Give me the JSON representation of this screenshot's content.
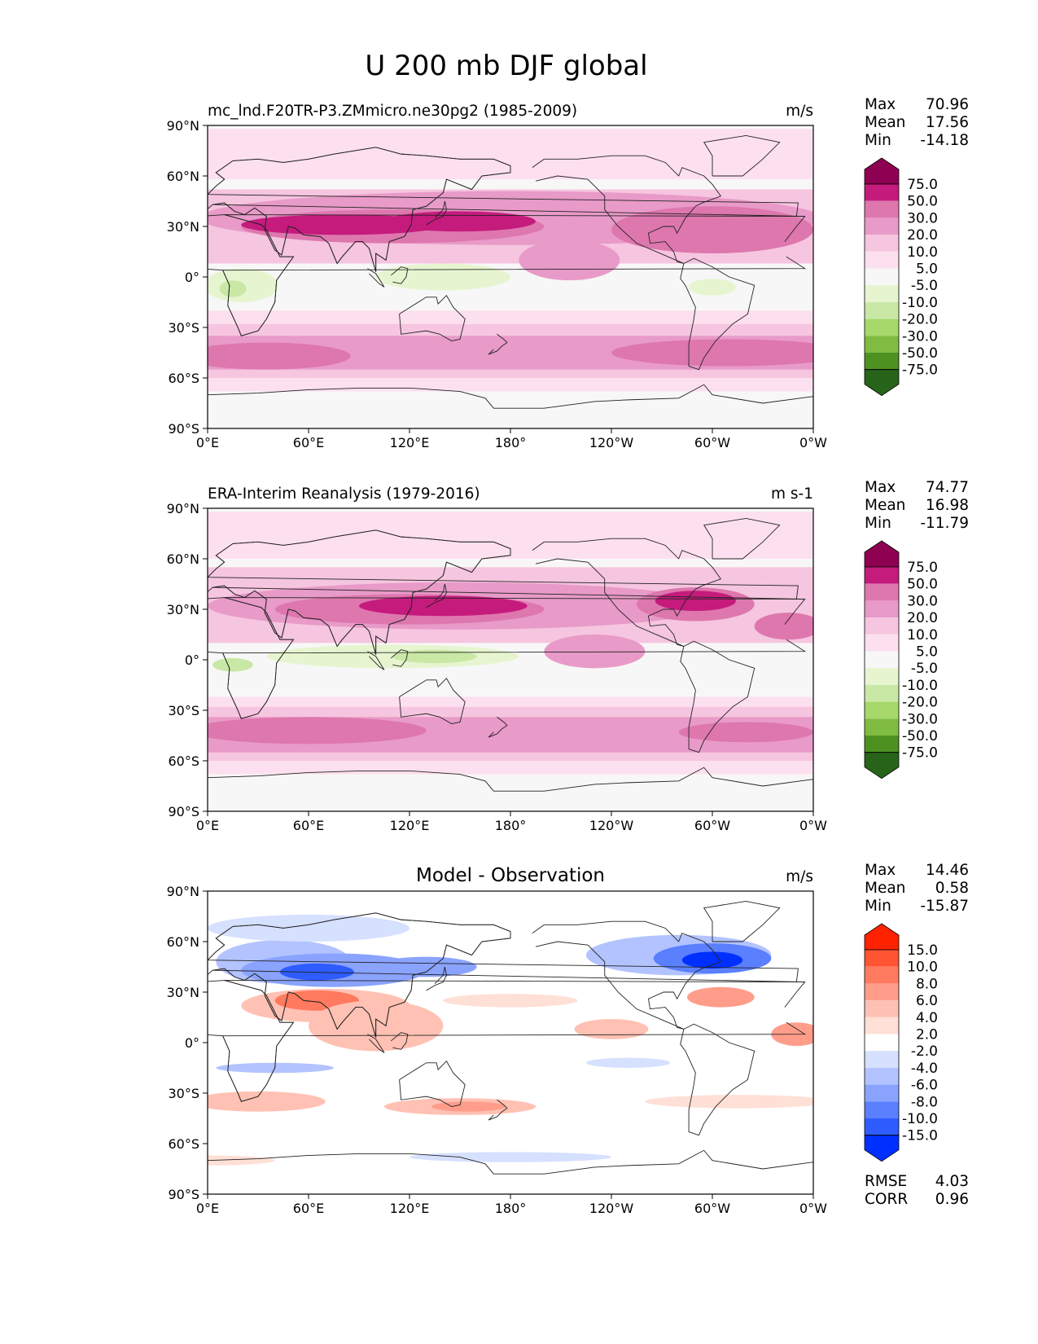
{
  "title": "U 200 mb DJF global",
  "x_ticks": [
    "0°E",
    "60°E",
    "120°E",
    "180°",
    "120°W",
    "60°W",
    "0°W"
  ],
  "y_ticks": [
    "90°N",
    "60°N",
    "30°N",
    "0°",
    "30°S",
    "60°S",
    "90°S"
  ],
  "colors": {
    "land_outline": "#222222",
    "pink_scale": [
      "#276419",
      "#4d9221",
      "#7fbc41",
      "#a6d96a",
      "#c9e8a6",
      "#e6f5d0",
      "#f7f7f7",
      "#fde0ef",
      "#f6c5df",
      "#e89ac8",
      "#de77ae",
      "#c51b7d",
      "#8e0152"
    ],
    "diff_scale": [
      "#0030ff",
      "#2f5cff",
      "#5a7fff",
      "#8aa3ff",
      "#b3c3ff",
      "#d6e0ff",
      "#ffffff",
      "#ffe0d6",
      "#ffc1b3",
      "#ff9d8a",
      "#ff7a5e",
      "#ff5533",
      "#ff2200"
    ]
  },
  "chart_data": [
    {
      "type": "heatmap",
      "panel": "test",
      "subtitle": "mc_lnd.F20TR-P3.ZMmicro.ne30pg2 (1985-2009)",
      "units": "m/s",
      "stats": {
        "max_label": "Max",
        "max": "70.96",
        "mean_label": "Mean",
        "mean": "17.56",
        "min_label": "Min",
        "min": "-14.18"
      },
      "colorbar_levels": [
        "75.0",
        "50.0",
        "30.0",
        "20.0",
        "10.0",
        "5.0",
        "-5.0",
        "-10.0",
        "-20.0",
        "-30.0",
        "-50.0",
        "-75.0"
      ],
      "xlim": [
        0,
        360
      ],
      "ylim": [
        -90,
        90
      ],
      "features": [
        {
          "name": "nh-jet-core",
          "lon": [
            20,
            210
          ],
          "lat": [
            25,
            38
          ],
          "level": "50 to 75"
        },
        {
          "name": "nh-jet-band",
          "lon": [
            0,
            360
          ],
          "lat": [
            12,
            45
          ],
          "level": "20 to 50"
        },
        {
          "name": "atlantic-jet",
          "lon": [
            270,
            360
          ],
          "lat": [
            15,
            50
          ],
          "level": "30 to 50"
        },
        {
          "name": "sh-jet",
          "lon": [
            0,
            360
          ],
          "lat": [
            -60,
            -38
          ],
          "level": "30 to 50"
        },
        {
          "name": "africa-easterlies",
          "lon": [
            5,
            40
          ],
          "lat": [
            -18,
            -2
          ],
          "level": "-10 to -20"
        },
        {
          "name": "maritime-continent-easterlies",
          "lon": [
            110,
            175
          ],
          "lat": [
            -10,
            5
          ],
          "level": "-5 to -10"
        }
      ]
    },
    {
      "type": "heatmap",
      "panel": "reference",
      "subtitle": "ERA-Interim Reanalysis (1979-2016)",
      "units": "m s-1",
      "stats": {
        "max_label": "Max",
        "max": "74.77",
        "mean_label": "Mean",
        "mean": "16.98",
        "min_label": "Min",
        "min": "-11.79"
      },
      "colorbar_levels": [
        "75.0",
        "50.0",
        "30.0",
        "20.0",
        "10.0",
        "5.0",
        "-5.0",
        "-10.0",
        "-20.0",
        "-30.0",
        "-50.0",
        "-75.0"
      ],
      "xlim": [
        0,
        360
      ],
      "ylim": [
        -90,
        90
      ],
      "features": [
        {
          "name": "nh-jet-core",
          "lon": [
            70,
            190
          ],
          "lat": [
            25,
            38
          ],
          "level": "50 to 75"
        },
        {
          "name": "nh-jet-band",
          "lon": [
            0,
            360
          ],
          "lat": [
            12,
            45
          ],
          "level": "20 to 50"
        },
        {
          "name": "atlantic-jet",
          "lon": [
            255,
            320
          ],
          "lat": [
            25,
            45
          ],
          "level": "50 to 75"
        },
        {
          "name": "sh-jet",
          "lon": [
            0,
            360
          ],
          "lat": [
            -58,
            -38
          ],
          "level": "30 to 50"
        },
        {
          "name": "africa-easterlies",
          "lon": [
            5,
            40
          ],
          "lat": [
            -10,
            0
          ],
          "level": "-10 to -20"
        },
        {
          "name": "indian-ocean-easterlies",
          "lon": [
            60,
            170
          ],
          "lat": [
            -8,
            8
          ],
          "level": "-5 to -10"
        }
      ]
    },
    {
      "type": "heatmap",
      "panel": "difference",
      "subtitle": "Model - Observation",
      "units": "m/s",
      "stats": {
        "max_label": "Max",
        "max": "14.46",
        "mean_label": "Mean",
        "mean": "0.58",
        "min_label": "Min",
        "min": "-15.87"
      },
      "colorbar_levels": [
        "15.0",
        "10.0",
        "8.0",
        "6.0",
        "4.0",
        "2.0",
        "-2.0",
        "-4.0",
        "-6.0",
        "-8.0",
        "-10.0",
        "-15.0"
      ],
      "metrics": {
        "rmse_label": "RMSE",
        "rmse": "4.03",
        "corr_label": "CORR",
        "corr": "0.96"
      },
      "xlim": [
        0,
        360
      ],
      "ylim": [
        -90,
        90
      ],
      "features": [
        {
          "name": "asia-negative",
          "lon": [
            30,
            150
          ],
          "lat": [
            30,
            55
          ],
          "level": "-10 to -15"
        },
        {
          "name": "na-negative",
          "lon": [
            260,
            340
          ],
          "lat": [
            35,
            60
          ],
          "level": "-10 to -15"
        },
        {
          "name": "arabia-positive",
          "lon": [
            20,
            140
          ],
          "lat": [
            10,
            32
          ],
          "level": "6 to 10"
        },
        {
          "name": "atlantic-positive",
          "lon": [
            290,
            320
          ],
          "lat": [
            20,
            35
          ],
          "level": "8 to 10"
        },
        {
          "name": "sh-positive",
          "lon": [
            0,
            360
          ],
          "lat": [
            -45,
            -30
          ],
          "level": "4 to 8"
        }
      ]
    }
  ]
}
